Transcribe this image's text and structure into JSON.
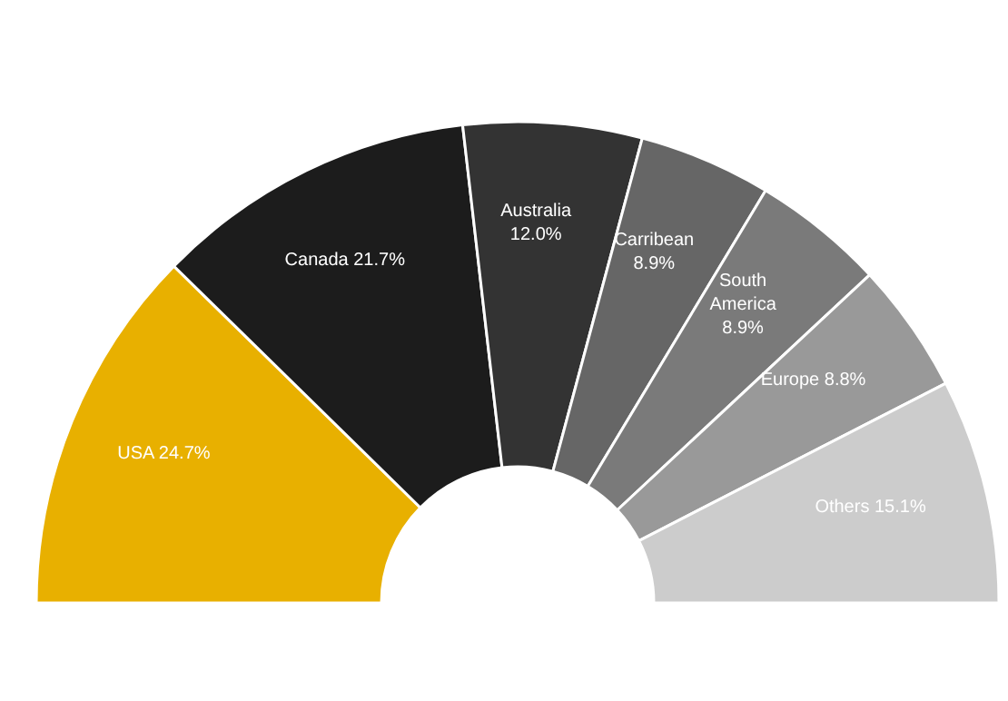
{
  "chart_data": {
    "type": "donut",
    "categories": [
      "USA",
      "Canada",
      "Australia",
      "Carribean",
      "South America",
      "Europe",
      "Others"
    ],
    "values": [
      24.7,
      21.7,
      12.0,
      8.9,
      8.9,
      8.8,
      15.1
    ],
    "value_labels": [
      "24.7%",
      "21.7%",
      "12.0%",
      "8.9%",
      "8.9%",
      "8.8%",
      "15.1%"
    ],
    "colors": [
      "#e8b000",
      "#1c1c1c",
      "#333333",
      "#666666",
      "#7a7a7a",
      "#999999",
      "#cccccc"
    ],
    "legend": false
  }
}
